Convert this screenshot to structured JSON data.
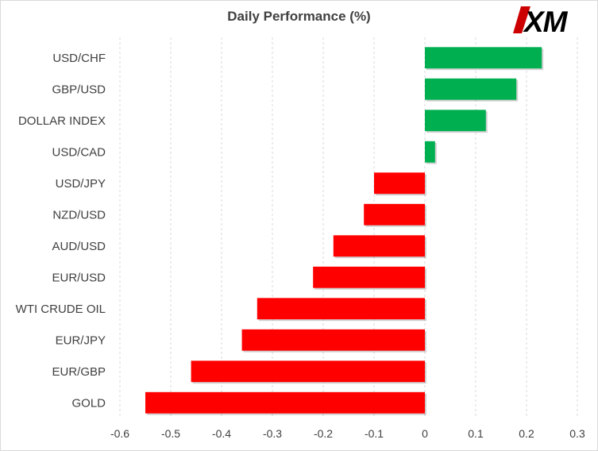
{
  "chart_data": {
    "type": "bar",
    "orientation": "horizontal",
    "title": "Daily Performance  (%)",
    "categories": [
      "USD/CHF",
      "GBP/USD",
      "DOLLAR INDEX",
      "USD/CAD",
      "USD/JPY",
      "NZD/USD",
      "AUD/USD",
      "EUR/USD",
      "WTI CRUDE OIL",
      "EUR/JPY",
      "EUR/GBP",
      "GOLD"
    ],
    "values": [
      0.23,
      0.18,
      0.12,
      0.02,
      -0.1,
      -0.12,
      -0.18,
      -0.22,
      -0.33,
      -0.36,
      -0.46,
      -0.55
    ],
    "xlim": [
      -0.6,
      0.3
    ],
    "xticks": [
      "-0.6",
      "-0.5",
      "-0.4",
      "-0.3",
      "-0.2",
      "-0.1",
      "0",
      "0.1",
      "0.2",
      "0.3"
    ],
    "grid": "vertical dashed",
    "colors": {
      "positive": "#00b050",
      "negative": "#ff0000"
    }
  },
  "logo": {
    "text": "XM",
    "color": "#cc0000",
    "text_color": "#000000"
  }
}
